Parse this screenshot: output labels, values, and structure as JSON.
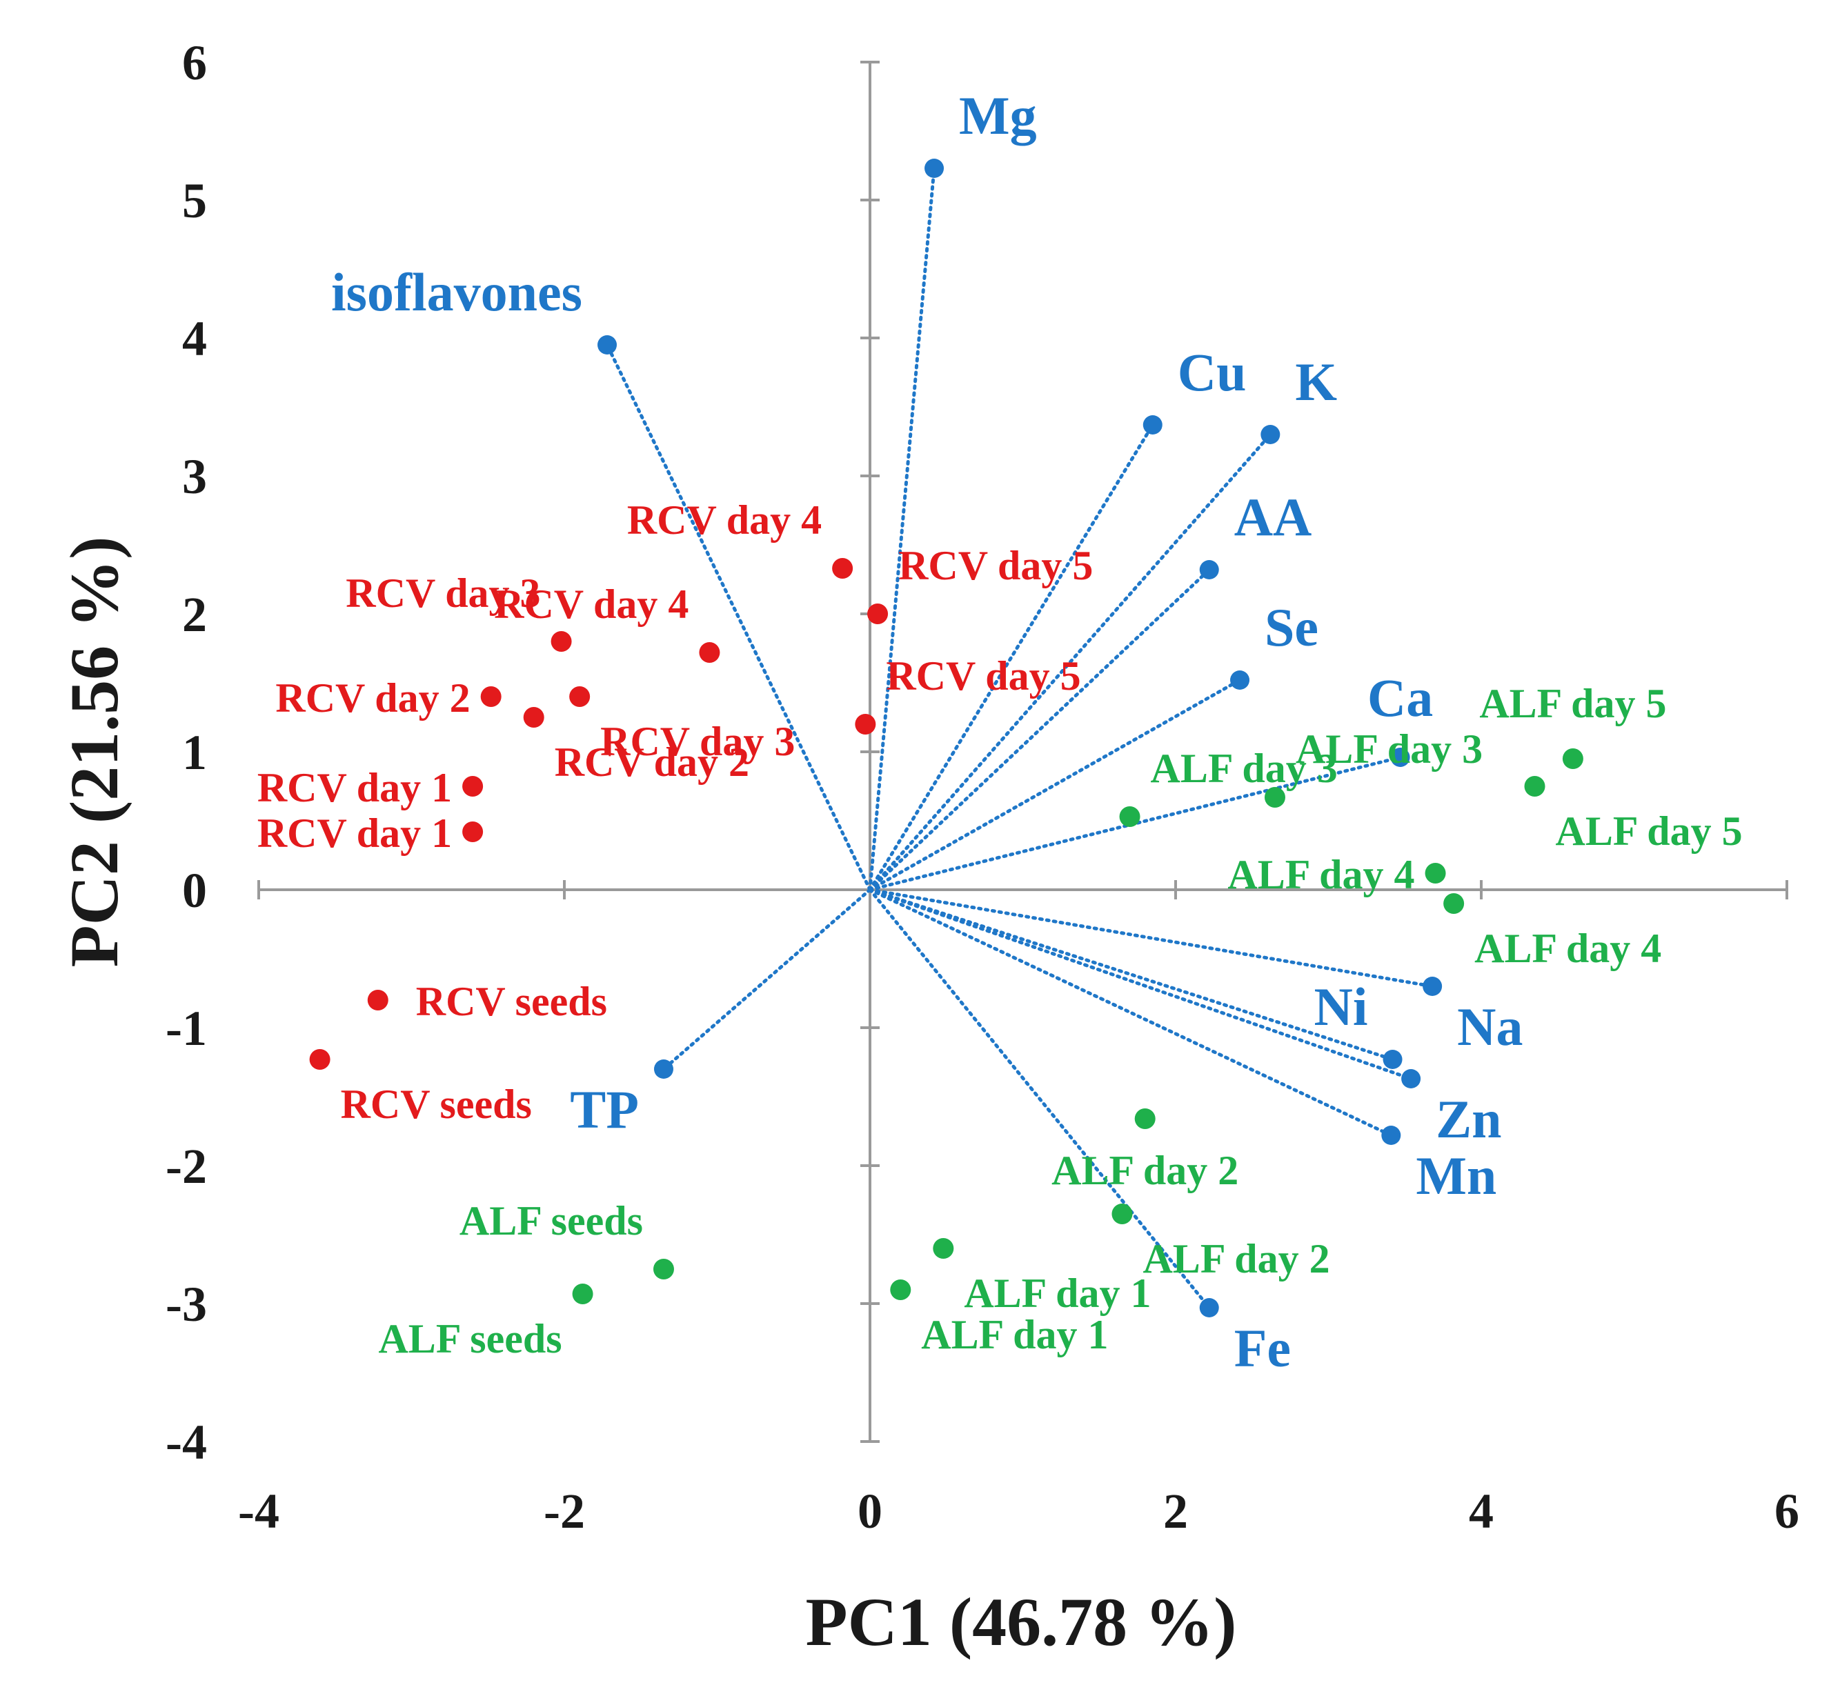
{
  "chart_data": {
    "type": "scatter",
    "subtype": "pca-biplot",
    "xlabel": "PC1 (46.78 %)",
    "ylabel": "PC2 (21.56 %)",
    "xlim": [
      -4,
      6
    ],
    "ylim": [
      -4,
      6
    ],
    "xticks": [
      -4,
      -2,
      0,
      2,
      4,
      6
    ],
    "yticks": [
      -4,
      -3,
      -2,
      -1,
      0,
      1,
      2,
      3,
      4,
      5,
      6
    ],
    "colors": {
      "RCV": "#e31a1c",
      "ALF": "#1fb04b",
      "loadings": "#1f77c8",
      "axis": "#9a9a9a",
      "text": "#1a1a1a"
    },
    "series": [
      {
        "name": "RCV",
        "points": [
          {
            "label": "RCV day 4",
            "x": -0.18,
            "y": 2.33,
            "label_pos": "upleft"
          },
          {
            "label": "RCV day 5",
            "x": 0.05,
            "y": 2.0,
            "label_pos": "upright"
          },
          {
            "label": "RCV day 3",
            "x": -2.02,
            "y": 1.8,
            "label_pos": "upleft"
          },
          {
            "label": "RCV day 4",
            "x": -1.05,
            "y": 1.72,
            "label_pos": "upleft"
          },
          {
            "label": "RCV day 2",
            "x": -2.48,
            "y": 1.4,
            "label_pos": "left"
          },
          {
            "label": "RCV day 3",
            "x": -1.9,
            "y": 1.4,
            "label_pos": "downright"
          },
          {
            "label": "RCV day 2",
            "x": -2.2,
            "y": 1.25,
            "label_pos": "downright"
          },
          {
            "label": "RCV day 5",
            "x": -0.03,
            "y": 1.2,
            "label_pos": "upright"
          },
          {
            "label": "RCV day 1",
            "x": -2.6,
            "y": 0.75,
            "label_pos": "left"
          },
          {
            "label": "RCV day 1",
            "x": -2.6,
            "y": 0.42,
            "label_pos": "left"
          },
          {
            "label": "RCV seeds",
            "x": -3.22,
            "y": -0.8,
            "label_pos": "right"
          },
          {
            "label": "RCV seeds",
            "x": -3.6,
            "y": -1.23,
            "label_pos": "downright"
          }
        ]
      },
      {
        "name": "ALF",
        "points": [
          {
            "label": "ALF day 5",
            "x": 4.6,
            "y": 0.95,
            "label_pos": "up"
          },
          {
            "label": "ALF day 5",
            "x": 4.35,
            "y": 0.75,
            "label_pos": "downright"
          },
          {
            "label": "ALF day 3",
            "x": 2.65,
            "y": 0.67,
            "label_pos": "upright"
          },
          {
            "label": "ALF day 3",
            "x": 1.7,
            "y": 0.53,
            "label_pos": "upright"
          },
          {
            "label": "ALF day 4",
            "x": 3.7,
            "y": 0.12,
            "label_pos": "left"
          },
          {
            "label": "ALF day 4",
            "x": 3.82,
            "y": -0.1,
            "label_pos": "downright"
          },
          {
            "label": "ALF day 2",
            "x": 1.8,
            "y": -1.66,
            "label_pos": "down"
          },
          {
            "label": "ALF day 2",
            "x": 1.65,
            "y": -2.35,
            "label_pos": "downright"
          },
          {
            "label": "ALF day 1",
            "x": 0.48,
            "y": -2.6,
            "label_pos": "downright"
          },
          {
            "label": "ALF day 1",
            "x": 0.2,
            "y": -2.9,
            "label_pos": "downright"
          },
          {
            "label": "ALF seeds",
            "x": -1.35,
            "y": -2.75,
            "label_pos": "upleft"
          },
          {
            "label": "ALF seeds",
            "x": -1.88,
            "y": -2.93,
            "label_pos": "downleft"
          }
        ]
      }
    ],
    "loadings": [
      {
        "label": "Mg",
        "x": 0.42,
        "y": 5.23,
        "label_pos": "upright"
      },
      {
        "label": "isoflavones",
        "x": -1.72,
        "y": 3.95,
        "label_pos": "upleft"
      },
      {
        "label": "Cu",
        "x": 1.85,
        "y": 3.37,
        "label_pos": "upright"
      },
      {
        "label": "K",
        "x": 2.62,
        "y": 3.3,
        "label_pos": "upright"
      },
      {
        "label": "AA",
        "x": 2.22,
        "y": 2.32,
        "label_pos": "upright"
      },
      {
        "label": "Se",
        "x": 2.42,
        "y": 1.52,
        "label_pos": "upright"
      },
      {
        "label": "Ca",
        "x": 3.47,
        "y": 0.96,
        "label_pos": "up"
      },
      {
        "label": "Na",
        "x": 3.68,
        "y": -0.7,
        "label_pos": "downright"
      },
      {
        "label": "Ni",
        "x": 3.42,
        "y": -1.23,
        "label_pos": "upleft"
      },
      {
        "label": "Zn",
        "x": 3.54,
        "y": -1.37,
        "label_pos": "downright"
      },
      {
        "label": "Mn",
        "x": 3.41,
        "y": -1.78,
        "label_pos": "downright"
      },
      {
        "label": "Fe",
        "x": 2.22,
        "y": -3.03,
        "label_pos": "downright"
      },
      {
        "label": "TP",
        "x": -1.35,
        "y": -1.3,
        "label_pos": "downleft"
      }
    ]
  }
}
